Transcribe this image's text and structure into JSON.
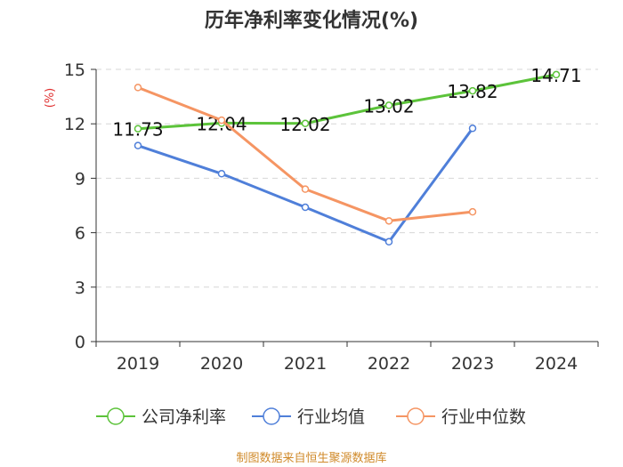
{
  "chart_data": {
    "type": "line",
    "title": "历年净利率变化情况(%)",
    "ylabel": "(%)",
    "categories": [
      "2019",
      "2020",
      "2021",
      "2022",
      "2023",
      "2024"
    ],
    "ylim": [
      0,
      15
    ],
    "yticks": [
      0,
      3,
      6,
      9,
      12,
      15
    ],
    "grid": true,
    "legend_position": "bottom",
    "series": [
      {
        "name": "公司净利率",
        "color": "#5cc33a",
        "values": [
          11.73,
          12.04,
          12.02,
          13.02,
          13.82,
          14.71
        ],
        "labels": [
          "11.73",
          "12.04",
          "12.02",
          "13.02",
          "13.82",
          "14.71"
        ]
      },
      {
        "name": "行业均值",
        "color": "#4f7fd9",
        "values": [
          10.8,
          9.25,
          7.4,
          5.5,
          11.75,
          null
        ]
      },
      {
        "name": "行业中位数",
        "color": "#f59563",
        "values": [
          14.0,
          12.2,
          8.4,
          6.65,
          7.15,
          null
        ]
      }
    ],
    "source": "制图数据来自恒生聚源数据库"
  }
}
